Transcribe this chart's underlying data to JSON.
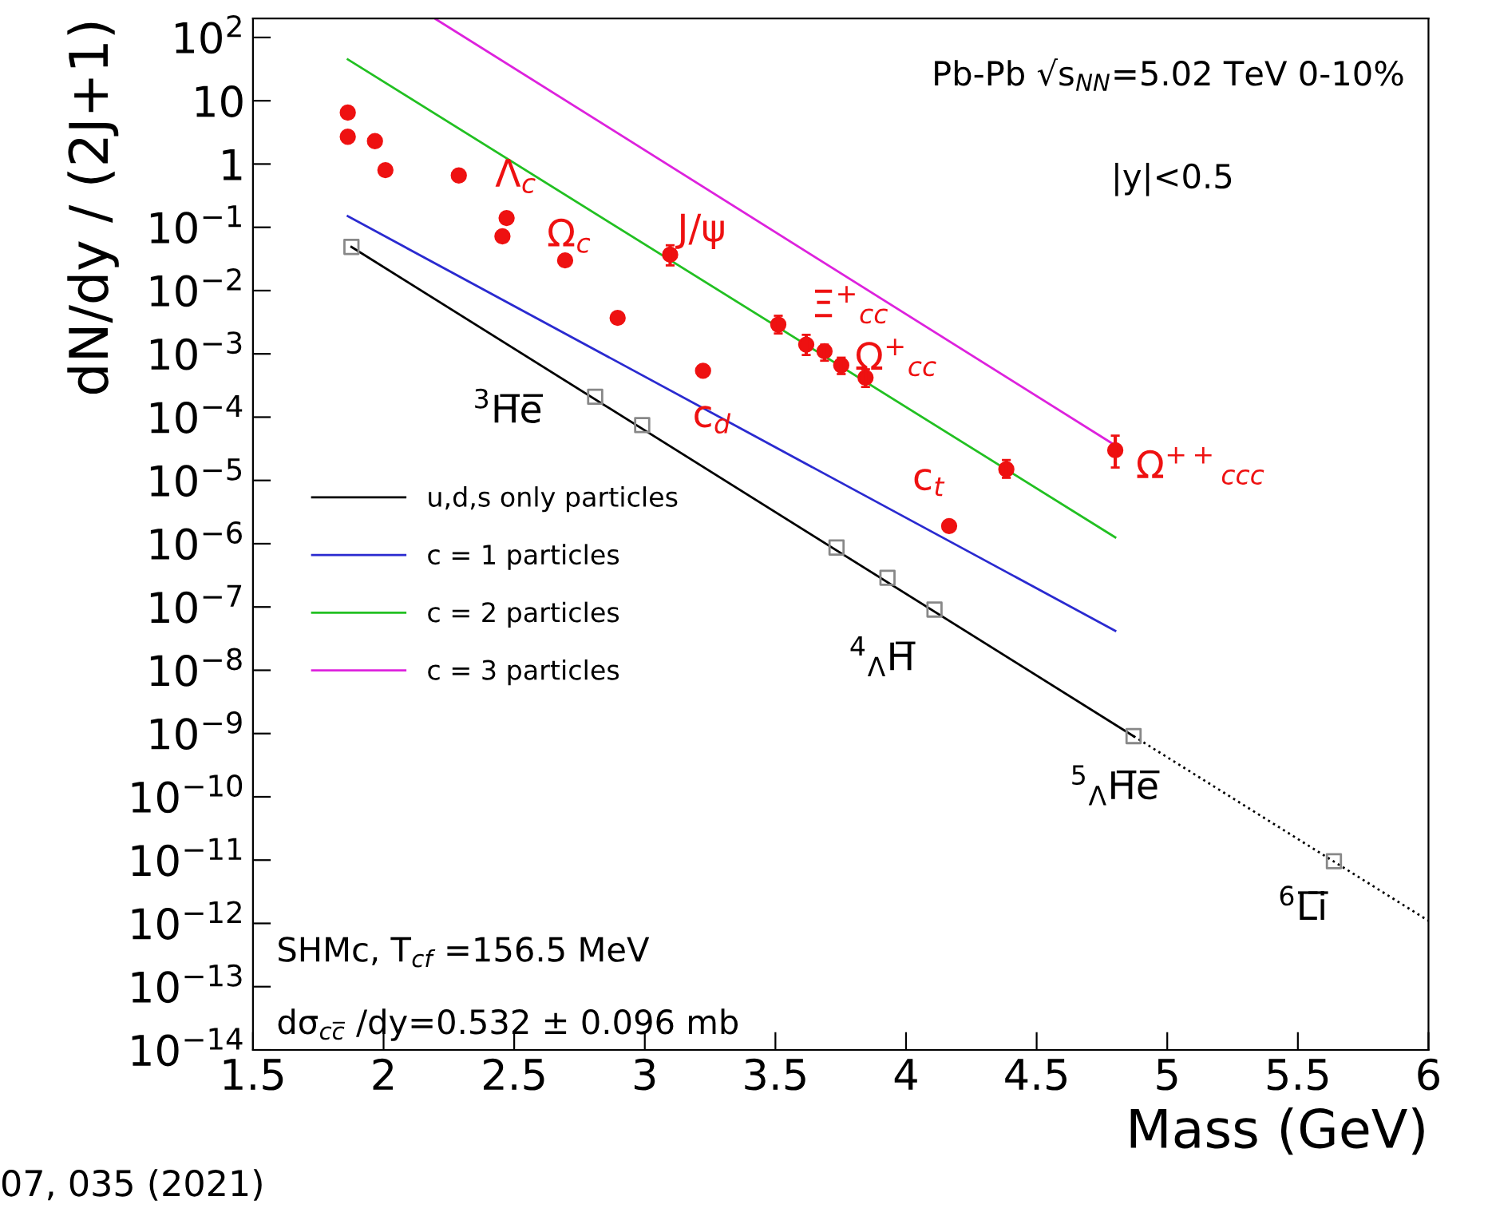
{
  "chart_data": {
    "type": "line",
    "xlabel": "Mass (GeV)",
    "ylabel": "dN/dy / (2J+1)",
    "log": "y",
    "xlim": [
      1.5,
      6
    ],
    "ylim": [
      1e-14,
      200
    ],
    "xticks": [
      1.5,
      2,
      2.5,
      3,
      3.5,
      4,
      4.5,
      5,
      5.5,
      6
    ],
    "yticks": [
      {
        "value": 100,
        "label": "10$^{2}$"
      },
      10,
      1,
      {
        "value": 0.1,
        "label": "10$^{−1}$"
      },
      {
        "value": 0.01,
        "label": "10$^{−2}$"
      },
      {
        "value": 0.001,
        "label": "10$^{−3}$"
      },
      {
        "value": 0.0001,
        "label": "10$^{−4}$"
      },
      {
        "value": 1e-05,
        "label": "10$^{−5}$"
      },
      {
        "value": 1e-06,
        "label": "10$^{−6}$"
      },
      {
        "value": 1e-07,
        "label": "10$^{−7}$"
      },
      {
        "value": 1e-08,
        "label": "10$^{−8}$"
      },
      {
        "value": 1e-09,
        "label": "10$^{−9}$"
      },
      {
        "value": 1e-10,
        "label": "10$^{−10}$"
      },
      {
        "value": 1e-11,
        "label": "10$^{−11}$"
      },
      {
        "value": 1e-12,
        "label": "10$^{−12}$"
      },
      {
        "value": 1e-13,
        "label": "10$^{−13}$"
      },
      {
        "value": 1e-14,
        "label": "10$^{−14}$"
      }
    ],
    "grid": false,
    "legend": "left",
    "series": [
      {
        "name": "u,d,s only particles",
        "color": "#000000",
        "line_style": "solid",
        "x": [
          1.877,
          4.871
        ],
        "values": [
          0.049,
          9.1e-10
        ]
      },
      {
        "name": "c = 1 particles",
        "color": "#2a2ad0",
        "line_style": "solid",
        "x": [
          1.863,
          4.801
        ],
        "values": [
          0.15,
          4.2e-08
        ]
      },
      {
        "name": "c = 2 particles",
        "color": "#22c022",
        "line_style": "solid",
        "x": [
          1.863,
          4.801
        ],
        "values": [
          45,
          1.26e-06
        ]
      },
      {
        "name": "c = 3 particles",
        "color": "#dd22dd",
        "line_style": "solid",
        "x": [
          2.2,
          4.791
        ],
        "values": [
          195,
          3.8e-05
        ]
      },
      {
        "color": "#000000",
        "line_style": "dotted",
        "x": [
          4.871,
          6
        ],
        "values": [
          9.1e-10,
          1.1e-12
        ]
      },
      {
        "type": "scatter",
        "color": "#888888",
        "marker": "square",
        "x": [
          1.877,
          2.81,
          2.99,
          3.734,
          3.929,
          4.109,
          4.871,
          5.638
        ],
        "values": [
          0.049,
          0.00021,
          7.5e-05,
          8.7e-07,
          2.9e-07,
          9.1e-08,
          9.1e-10,
          9.6e-12
        ]
      },
      {
        "type": "scatter",
        "color": "#ee1111",
        "marker": "circle",
        "x": [
          1.863,
          1.863,
          1.967,
          2.007,
          2.288,
          2.471,
          2.455,
          2.695,
          3.097,
          2.896,
          3.223,
          3.511,
          3.618,
          3.688,
          3.752,
          3.845,
          4.384,
          4.801,
          4.165
        ],
        "values": [
          6.5,
          2.7,
          2.3,
          0.8,
          0.66,
          0.14,
          0.072,
          0.03,
          0.037,
          0.0037,
          0.00054,
          0.0029,
          0.0014,
          0.0011,
          0.00066,
          0.00042,
          1.5e-05,
          3e-05,
          1.9e-06
        ],
        "errors": [
          null,
          null,
          null,
          null,
          null,
          null,
          null,
          null,
          [
            0.025,
            0.052
          ],
          null,
          null,
          [
            0.0021,
            0.004
          ],
          [
            0.00096,
            0.002
          ],
          [
            0.00078,
            0.0014
          ],
          [
            0.00048,
            0.00087
          ],
          [
            0.0003,
            0.00057
          ],
          [
            1.1e-05,
            2.1e-05
          ],
          [
            1.6e-05,
            5.1e-05
          ],
          null
        ]
      }
    ],
    "annotations": [
      "Λ$_{c}$",
      "Ω$_{c}$",
      "J/ψ",
      "Ξ$^{+}$$_{cc}$",
      "Ω$^{+}$$_{cc}$",
      "Ω$^{++}$$_{ccc}$",
      "c$_{d}$",
      "c$_{t}$",
      "$^{3}$H̅e̅",
      "$^{4}$$_{Λ}$H̅",
      "$^{5}$$_{Λ}$H̅e̅",
      "$^{6}$L̅i̅",
      "Pb-Pb √s$_{NN}$=5.02 TeV 0-10%",
      "|y|<0.5",
      "SHMc, T$_{cf}$ =156.5 MeV",
      "dσ$_{cc̅}$ /dy=0.532 ± 0.096 mb",
      "07, 035 (2021)"
    ]
  }
}
